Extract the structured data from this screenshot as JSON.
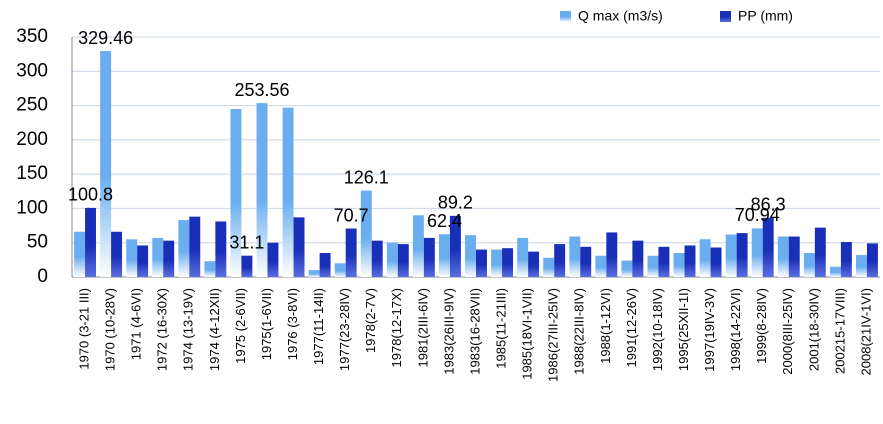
{
  "chart_data": {
    "type": "bar",
    "categories": [
      "1970 (3-21 III)",
      "1970 (10-28V)",
      "1971 (4-6VI)",
      "1972 (16-30X)",
      "1974 (13-19V)",
      "1974 (4-12XII)",
      "1975 (2-6VII)",
      "1975(1-6VII)",
      "1976 (3-8VI)",
      "1977(11-14II)",
      "1977(23-28IV)",
      "1978(2-7V)",
      "1978(12-17X)",
      "1981(2III-6IV)",
      "1983(26III-9IV)",
      "1983(16-28VII)",
      "1985(11-21III)",
      "1985(18VI-1VII)",
      "1986(27III-25IV)",
      "1988(22III-8IV)",
      "1988(1-12VI)",
      "1991(12-26V)",
      "1992(10-18IV)",
      "1995(25XII-1I)",
      "1997(19IV-3V)",
      "1998(14-22VI)",
      "1999(8-28IV)",
      "2000(8III-25IV)",
      "2001(18-30IV)",
      "200215-17VIII)",
      "2008(21IV-1VI)"
    ],
    "series": [
      {
        "name": "Q max (m3/s)",
        "color": "#6aaef0",
        "values": [
          66,
          329.46,
          55,
          57,
          83,
          23,
          245,
          253.56,
          247,
          10,
          20,
          126.1,
          50,
          90,
          62.4,
          61,
          40,
          57,
          28,
          59,
          31,
          24,
          31,
          35,
          55,
          62,
          70.94,
          59,
          35,
          15,
          32
        ],
        "value_labels": [
          null,
          "329.46",
          null,
          null,
          null,
          null,
          null,
          "253.56",
          null,
          null,
          null,
          "126.1",
          null,
          null,
          "62.4",
          null,
          null,
          null,
          null,
          null,
          null,
          null,
          null,
          null,
          null,
          null,
          "70.94",
          null,
          null,
          null,
          null
        ]
      },
      {
        "name": "PP (mm)",
        "color": "#1a2fb8",
        "values": [
          100.8,
          66,
          46,
          53,
          88,
          81,
          31.1,
          50,
          87,
          35,
          70.7,
          53,
          48,
          57,
          89.2,
          40,
          42,
          37,
          48,
          44,
          65,
          53,
          44,
          46,
          43,
          64,
          86.3,
          59,
          72,
          51,
          49
        ],
        "value_labels": [
          "100.8",
          null,
          null,
          null,
          null,
          null,
          "31.1",
          null,
          null,
          null,
          "70.7",
          null,
          null,
          null,
          "89.2",
          null,
          null,
          null,
          null,
          null,
          null,
          null,
          null,
          null,
          null,
          null,
          "86.3",
          null,
          null,
          null,
          null
        ]
      }
    ],
    "ylim": [
      0,
      350
    ],
    "yticks": [
      0,
      50,
      100,
      150,
      200,
      250,
      300,
      350
    ],
    "grid": true,
    "legend": "top-right"
  }
}
